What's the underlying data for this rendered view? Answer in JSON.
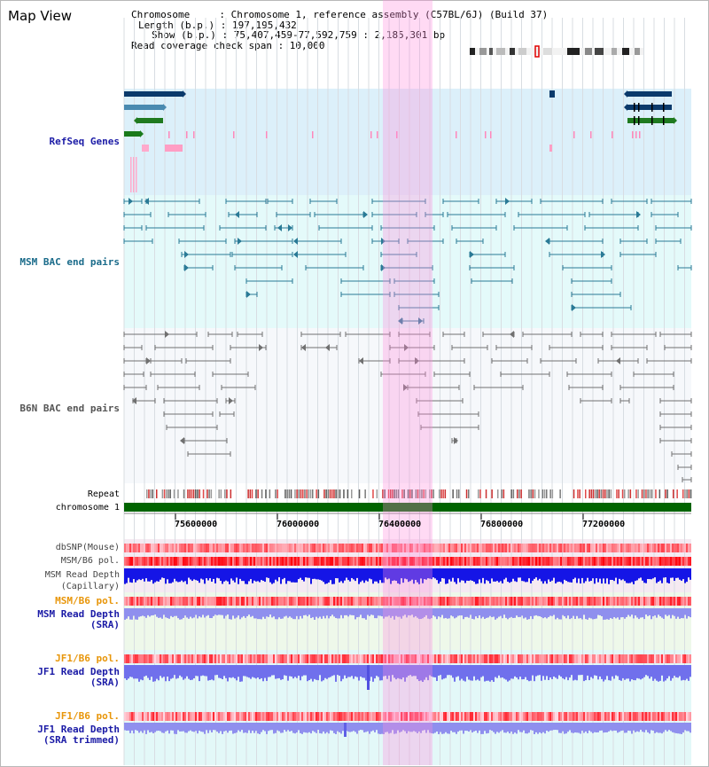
{
  "page_title": "Map View",
  "info": {
    "chromosome": "Chromosome     : Chromosome 1, reference assembly (C57BL/6J) (Build 37)",
    "length": "Length (b.p.) : 197,195,432",
    "show": "Show (b.p.) : 75,407,459-77,592,759 : 2,185,301 bp",
    "span": "Read coverage check span : 10,000"
  },
  "tracks": {
    "refseq": "RefSeq Genes",
    "msm_bac": "MSM BAC end pairs",
    "b6n_bac": "B6N BAC end pairs",
    "repeat": "Repeat",
    "chromosome": "chromosome 1",
    "dbsnp": "dbSNP(Mouse)",
    "msm_b6_pol_1": "MSM/B6 pol.",
    "msm_depth_cap_1": "MSM Read Depth",
    "msm_depth_cap_2": "(Capillary)",
    "msm_b6_pol_2": "MSM/B6 pol.",
    "msm_depth_sra_1": "MSM Read Depth",
    "msm_depth_sra_2": "(SRA)",
    "jf1_b6_pol_1": "JF1/B6 pol.",
    "jf1_depth_sra_1": "JF1 Read Depth",
    "jf1_depth_sra_2": "(SRA)",
    "jf1_b6_pol_2": "JF1/B6 pol.",
    "jf1_depth_trim_1": "JF1 Read Depth",
    "jf1_depth_trim_2": "(SRA trimmed)"
  },
  "ruler": {
    "ticks": [
      "75600000",
      "76000000",
      "76400000",
      "76800000",
      "77200000"
    ]
  },
  "colors": {
    "refseq_label": "#1a1aa6",
    "msm_label": "#1a6b8a",
    "b6n_label": "#555555",
    "pol_label": "#e8960a",
    "depth_label": "#1a1aa6",
    "highlight": "#ff99dd",
    "chromosome_bar": "#006400"
  }
}
